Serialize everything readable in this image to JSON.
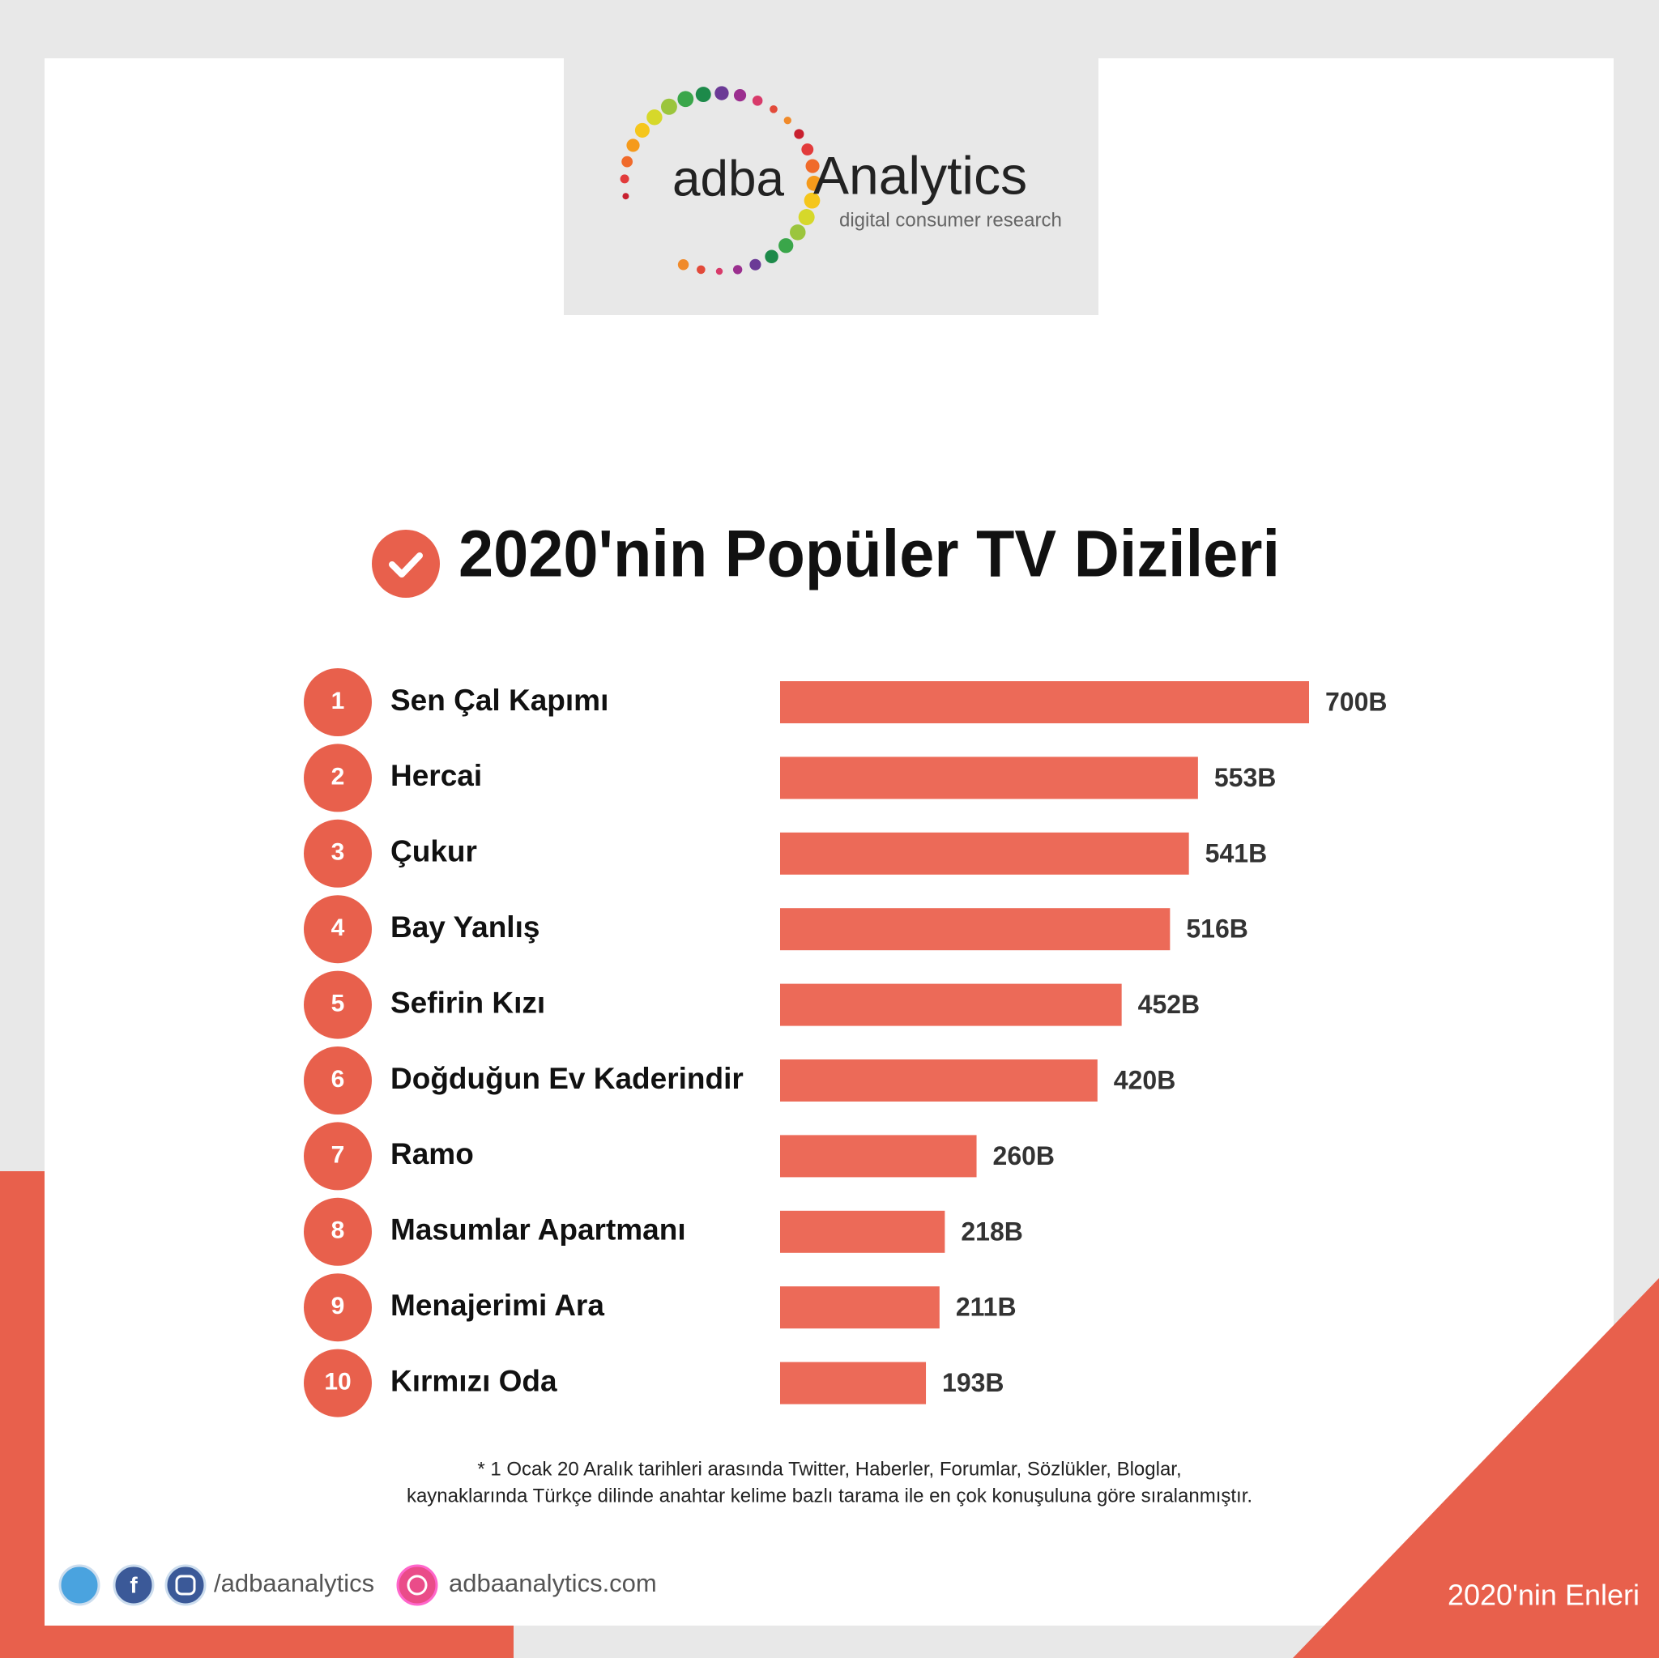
{
  "logo": {
    "brand": "adba",
    "name": "Analytics",
    "tagline": "digital consumer research"
  },
  "chart_data": {
    "type": "bar",
    "orientation": "horizontal",
    "title": "2020'nin Popüler TV Dizileri",
    "ranks": [
      1,
      2,
      3,
      4,
      5,
      6,
      7,
      8,
      9,
      10
    ],
    "categories": [
      "Sen Çal Kapımı",
      "Hercai",
      "Çukur",
      "Bay Yanlış",
      "Sefirin Kızı",
      "Doğduğun Ev Kaderindir",
      "Ramo",
      "Masumlar Apartmanı",
      "Menajerimi Ara",
      "Kırmızı Oda"
    ],
    "values": [
      700,
      553,
      541,
      516,
      452,
      420,
      260,
      218,
      211,
      193
    ],
    "value_labels": [
      "700B",
      "553B",
      "541B",
      "516B",
      "452B",
      "420B",
      "260B",
      "218B",
      "211B",
      "193B"
    ],
    "color": "#ec6a58"
  },
  "footnote": [
    "* 1 Ocak 20 Aralık tarihleri arasında Twitter, Haberler, Forumlar, Sözlükler, Bloglar,",
    "kaynaklarında Türkçe dilinde anahtar kelime bazlı tarama ile en çok konuşuluna göre sıralanmıştır."
  ],
  "social": {
    "handle": "/adbaanalytics",
    "website": "adbaanalytics.com"
  },
  "corner_label": "2020'nin Enleri"
}
